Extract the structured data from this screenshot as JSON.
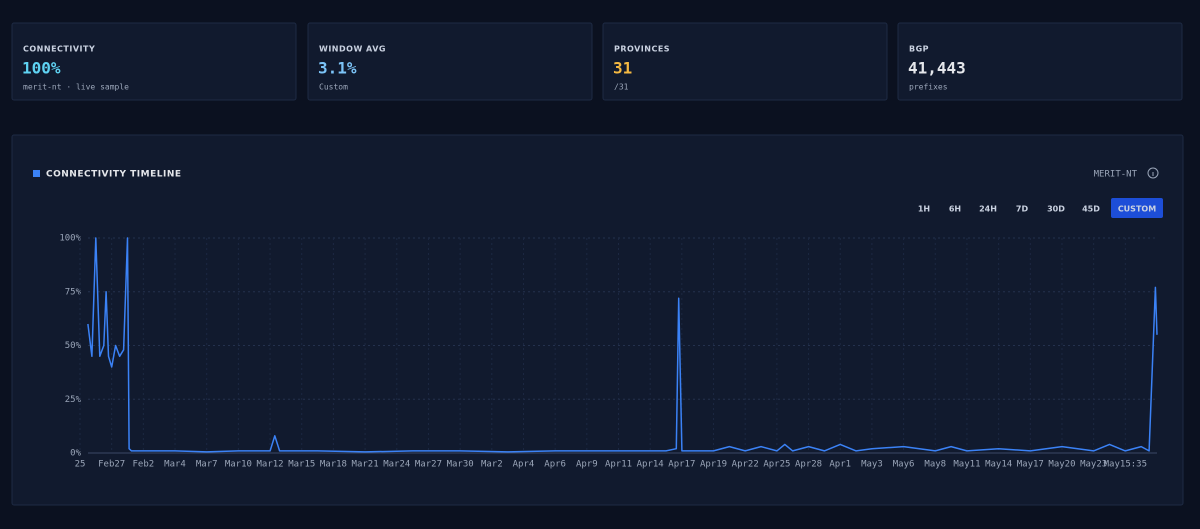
{
  "cards": [
    {
      "label": "CONNECTIVITY",
      "value": "100%",
      "sub": "merit-nt · live sample",
      "color": "#5fd3f3"
    },
    {
      "label": "WINDOW AVG",
      "value": "3.1%",
      "sub": "Custom",
      "color": "#7cc4f8"
    },
    {
      "label": "PROVINCES",
      "value": "31",
      "sub": "/31",
      "color": "#f5b942"
    },
    {
      "label": "BGP",
      "value": "41,443",
      "sub": "prefixes",
      "color": "#e5e7eb"
    }
  ],
  "panel": {
    "title": "CONNECTIVITY TIMELINE",
    "source": "MERIT-NT",
    "ranges": [
      "1H",
      "6H",
      "24H",
      "7D",
      "30D",
      "45D",
      "CUSTOM"
    ],
    "active_range": "CUSTOM"
  },
  "chart_data": {
    "type": "line",
    "color": "#3b82f6",
    "grid": true,
    "x": [
      1,
      1.5,
      2,
      2.5,
      3,
      3.3,
      3.6,
      4,
      4.5,
      5,
      5.5,
      6,
      6.2,
      6.5,
      8,
      12,
      16,
      20,
      24,
      24.6,
      25.2,
      30,
      36,
      42,
      48,
      54,
      60,
      66,
      70,
      74,
      75.3,
      75.6,
      76,
      78,
      80,
      82,
      84,
      86,
      88,
      89,
      90,
      92,
      94,
      96,
      98,
      100,
      104,
      108,
      110,
      112,
      116,
      120,
      124,
      128,
      130,
      132,
      134,
      135,
      135.8,
      136
    ],
    "values": [
      60,
      45,
      100,
      45,
      50,
      75,
      45,
      40,
      50,
      45,
      48,
      100,
      2,
      1,
      1,
      1,
      0.5,
      1,
      1,
      8,
      1,
      1,
      0.5,
      1,
      1,
      0.5,
      1,
      1,
      1,
      1,
      2,
      72,
      1,
      1,
      1,
      3,
      1,
      3,
      1,
      4,
      1,
      3,
      1,
      4,
      1,
      2,
      3,
      1,
      3,
      1,
      2,
      1,
      3,
      1,
      4,
      1,
      3,
      1,
      77,
      55
    ],
    "xlim": [
      0,
      136
    ],
    "xticks": [
      {
        "value": 0,
        "label": "25"
      },
      {
        "value": 4,
        "label": "Feb27"
      },
      {
        "value": 8,
        "label": "Feb2"
      },
      {
        "value": 12,
        "label": "Mar4"
      },
      {
        "value": 16,
        "label": "Mar7"
      },
      {
        "value": 20,
        "label": "Mar10"
      },
      {
        "value": 24,
        "label": "Mar12"
      },
      {
        "value": 28,
        "label": "Mar15"
      },
      {
        "value": 32,
        "label": "Mar18"
      },
      {
        "value": 36,
        "label": "Mar21"
      },
      {
        "value": 40,
        "label": "Mar24"
      },
      {
        "value": 44,
        "label": "Mar27"
      },
      {
        "value": 48,
        "label": "Mar30"
      },
      {
        "value": 52,
        "label": "Mar2"
      },
      {
        "value": 56,
        "label": "Apr4"
      },
      {
        "value": 60,
        "label": "Apr6"
      },
      {
        "value": 64,
        "label": "Apr9"
      },
      {
        "value": 68,
        "label": "Apr11"
      },
      {
        "value": 72,
        "label": "Apr14"
      },
      {
        "value": 76,
        "label": "Apr17"
      },
      {
        "value": 80,
        "label": "Apr19"
      },
      {
        "value": 84,
        "label": "Apr22"
      },
      {
        "value": 88,
        "label": "Apr25"
      },
      {
        "value": 92,
        "label": "Apr28"
      },
      {
        "value": 96,
        "label": "Apr1"
      },
      {
        "value": 100,
        "label": "May3"
      },
      {
        "value": 104,
        "label": "May6"
      },
      {
        "value": 108,
        "label": "May8"
      },
      {
        "value": 112,
        "label": "May11"
      },
      {
        "value": 116,
        "label": "May14"
      },
      {
        "value": 120,
        "label": "May17"
      },
      {
        "value": 124,
        "label": "May20"
      },
      {
        "value": 128,
        "label": "May23"
      },
      {
        "value": 132,
        "label": "May15:35"
      }
    ],
    "ylim": [
      0,
      100
    ],
    "yticks": [
      {
        "value": 0,
        "label": "0%"
      },
      {
        "value": 25,
        "label": "25%"
      },
      {
        "value": 50,
        "label": "50%"
      },
      {
        "value": 75,
        "label": "75%"
      },
      {
        "value": 100,
        "label": "100%"
      }
    ]
  }
}
